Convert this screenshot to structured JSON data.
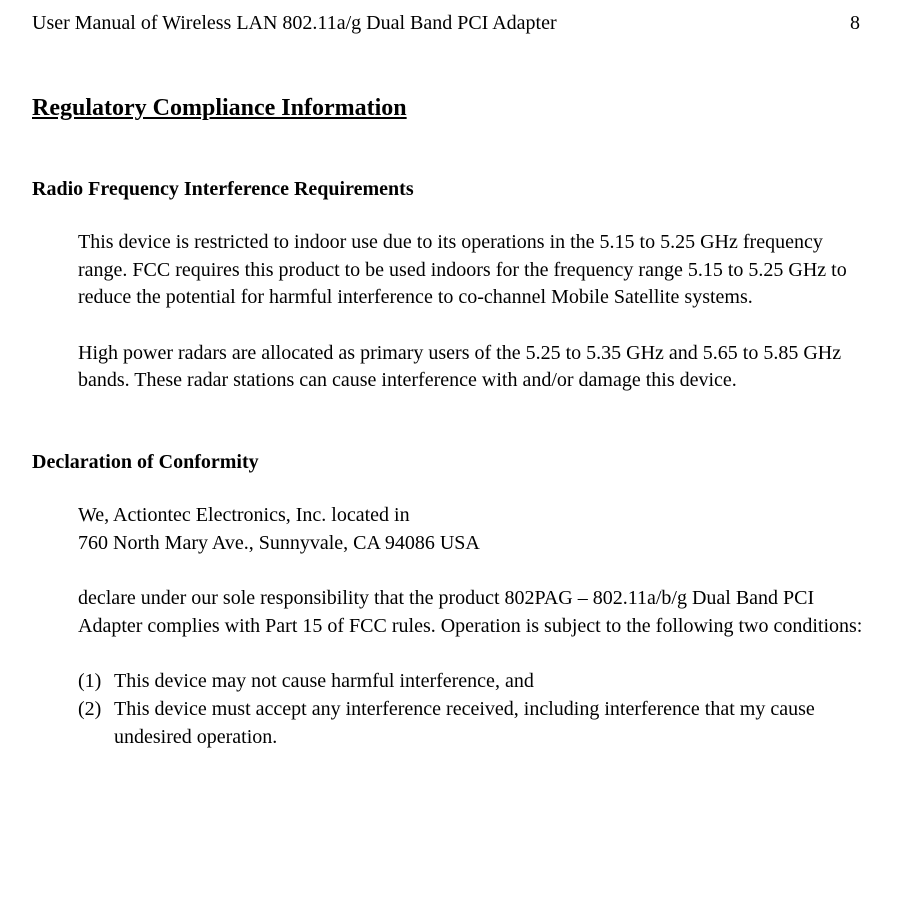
{
  "header": {
    "title": "User Manual of Wireless LAN 802.11a/g Dual Band PCI Adapter",
    "pageNumber": "8"
  },
  "mainHeading": "Regulatory Compliance Information",
  "section1": {
    "heading": "Radio Frequency Interference Requirements",
    "para1": "This device is restricted to indoor use due to its operations in the 5.15 to 5.25 GHz frequency range.  FCC requires this product to be used indoors for the frequency range 5.15 to 5.25 GHz to reduce the potential for harmful interference to co-channel Mobile Satellite systems.",
    "para2": "High power radars are allocated as primary users of the 5.25 to 5.35 GHz and 5.65 to 5.85 GHz bands.  These radar stations can cause interference with and/or damage this device."
  },
  "section2": {
    "heading": "Declaration of Conformity",
    "addressLine1": "We, Actiontec Electronics, Inc. located in",
    "addressLine2": "760 North Mary Ave., Sunnyvale, CA 94086 USA",
    "para1": "declare under our sole responsibility that the product 802PAG – 802.11a/b/g Dual Band PCI Adapter complies with Part 15 of FCC rules.  Operation is subject to the following two conditions:",
    "list": [
      {
        "marker": "(1)",
        "text": "This device may not cause harmful interference, and"
      },
      {
        "marker": "(2)",
        "text": "This device must accept any interference received, including interference that my cause undesired operation."
      }
    ]
  },
  "colors": {
    "text": "#000000",
    "background": "#ffffff"
  },
  "typography": {
    "bodyFontSize": 20,
    "headingFontSize": 24,
    "sectionHeadingFontSize": 20,
    "fontFamily": "Times New Roman"
  }
}
